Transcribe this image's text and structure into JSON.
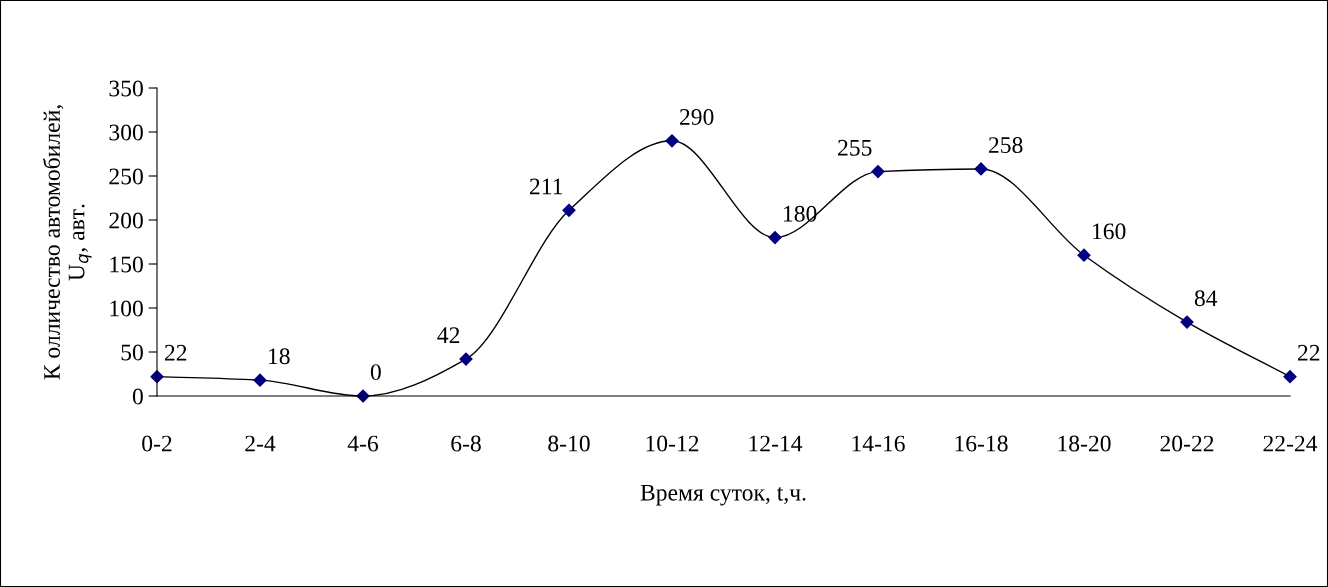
{
  "chart_data": {
    "type": "line",
    "xlabel": "Время суток, t,ч.",
    "ylabel": "К олличество автомобилей,\nU$_{q}$, авт.",
    "categories": [
      "0-2",
      "2-4",
      "4-6",
      "6-8",
      "8-10",
      "10-12",
      "12-14",
      "14-16",
      "16-18",
      "18-20",
      "20-22",
      "22-24"
    ],
    "series": [
      {
        "color": "#000080",
        "values": [
          22,
          18,
          0,
          42,
          211,
          290,
          180,
          255,
          258,
          160,
          84,
          22
        ]
      }
    ],
    "ylim": [
      0,
      350
    ],
    "yticks": [
      0,
      50,
      100,
      150,
      200,
      250,
      300,
      350
    ],
    "grid": false,
    "marker": "diamond",
    "line_style": "solid",
    "data_labels": true
  }
}
